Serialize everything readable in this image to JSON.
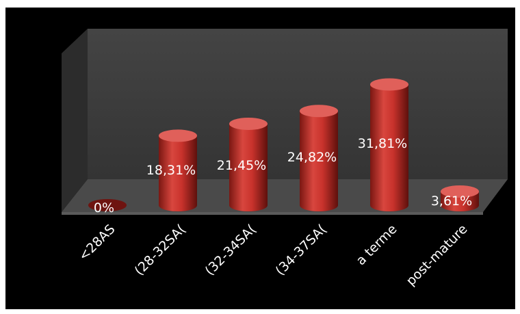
{
  "chart_data": {
    "type": "bar",
    "style": "3d-cylinder",
    "title": "",
    "xlabel": "",
    "ylabel": "",
    "categories": [
      "<28AS",
      "(28-32SA(",
      "(32-34SA(",
      "(34-37SA(",
      "a terme",
      "post-mature"
    ],
    "values": [
      0,
      18.31,
      21.45,
      24.82,
      31.81,
      3.61
    ],
    "value_labels": [
      "0%",
      "18,31%",
      "21,45%",
      "24,82%",
      "31,81%",
      "3,61%"
    ],
    "ylim": [
      0,
      35
    ],
    "grid": false,
    "legend": "none",
    "colors": {
      "bar": "#c8322c",
      "bar_dark": "#6e1410",
      "bar_top": "#e0605a",
      "back_wall": "#3b3b3b",
      "side_wall": "#2e2e2e",
      "floor": "#4a4a4a",
      "background": "#000000",
      "text": "#ffffff"
    }
  }
}
